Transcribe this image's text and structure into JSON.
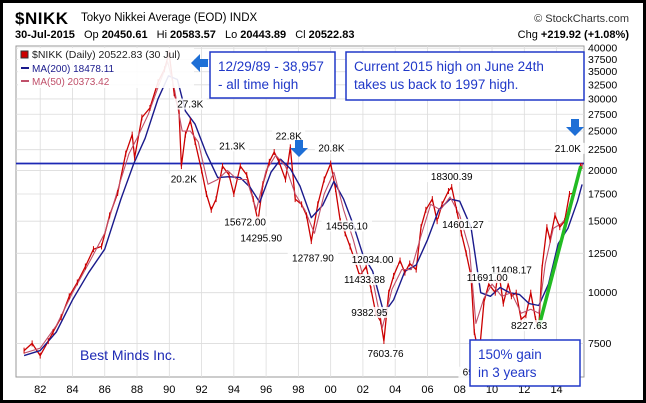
{
  "header": {
    "symbol": "$NIKK",
    "name": "Tokyo Nikkei Average (EOD)  INDX",
    "source": "© StockCharts.com",
    "date": "30-Jul-2015",
    "open_label": "Op",
    "open": "20450.61",
    "high_label": "Hi",
    "high": "20583.57",
    "low_label": "Lo",
    "low": "20443.89",
    "close_label": "Cl",
    "close": "20522.83",
    "change_label": "Chg",
    "change": "+219.92 (+1.08%)"
  },
  "legend": {
    "title": "$NIKK (Daily) 20522.83 (30 Jul)",
    "ma200": "MA(200) 18478.11",
    "ma50": "MA(50) 20373.42"
  },
  "colors": {
    "price": "#cc0000",
    "ma200": "#1a1a8c",
    "ma50": "#c0506a",
    "hline": "#1c28b4",
    "callout_border": "#2038c8",
    "callout_text": "#2038c8",
    "arrow": "#1e6fd6",
    "trend": "#22bb22",
    "watermark": "#1c28b4"
  },
  "chart_data": {
    "type": "line",
    "yscale": "log",
    "ylim": [
      6200,
      40500
    ],
    "xlim": [
      1980.5,
      2015.7
    ],
    "x_ticks": [
      1982,
      1984,
      1986,
      1988,
      1990,
      1992,
      1994,
      1996,
      1998,
      2000,
      2002,
      2004,
      2006,
      2008,
      2010,
      2012,
      2014
    ],
    "x_tick_labels": [
      "82",
      "84",
      "86",
      "88",
      "90",
      "92",
      "94",
      "96",
      "98",
      "00",
      "02",
      "04",
      "06",
      "08",
      "10",
      "12",
      "14"
    ],
    "y_ticks": [
      7500,
      10000,
      12500,
      15000,
      17500,
      20000,
      22500,
      25000,
      27500,
      30000,
      32500,
      35000,
      37500,
      40000
    ],
    "y_tick_labels": [
      "7500",
      "10000",
      "12500",
      "15000",
      "17500",
      "20000",
      "22500",
      "25000",
      "27500",
      "30000",
      "32500",
      "35000",
      "37500",
      "40000"
    ],
    "grid": true,
    "series": [
      {
        "key": "price",
        "x": [
          1981.0,
          1981.5,
          1982.0,
          1982.5,
          1982.8,
          1983.3,
          1983.8,
          1984.3,
          1984.8,
          1985.3,
          1985.8,
          1986.3,
          1986.8,
          1987.3,
          1987.7,
          1987.85,
          1988.3,
          1988.8,
          1989.3,
          1989.7,
          1989.99,
          1990.3,
          1990.6,
          1990.75,
          1991.0,
          1991.3,
          1991.6,
          1992.0,
          1992.3,
          1992.6,
          1992.9,
          1993.3,
          1993.7,
          1994.0,
          1994.4,
          1994.8,
          1995.2,
          1995.5,
          1995.8,
          1996.2,
          1996.5,
          1996.8,
          1997.2,
          1997.5,
          1997.8,
          1998.2,
          1998.5,
          1998.8,
          1999.2,
          1999.6,
          2000.0,
          2000.3,
          2000.6,
          2000.9,
          2001.2,
          2001.5,
          2001.8,
          2002.2,
          2002.5,
          2002.8,
          2003.1,
          2003.3,
          2003.6,
          2003.9,
          2004.3,
          2004.6,
          2004.9,
          2005.3,
          2005.6,
          2005.9,
          2006.3,
          2006.6,
          2006.9,
          2007.3,
          2007.5,
          2007.8,
          2008.1,
          2008.4,
          2008.7,
          2008.9,
          2009.2,
          2009.5,
          2009.8,
          2010.2,
          2010.4,
          2010.7,
          2011.0,
          2011.2,
          2011.5,
          2011.8,
          2012.1,
          2012.4,
          2012.7,
          2012.9,
          2013.1,
          2013.4,
          2013.6,
          2013.9,
          2014.2,
          2014.5,
          2014.8,
          2015.1,
          2015.3,
          2015.48,
          2015.58
        ],
        "values": [
          7200,
          7500,
          7000,
          7600,
          8000,
          8700,
          9800,
          10600,
          11600,
          12800,
          13000,
          15500,
          17600,
          22000,
          24500,
          21500,
          27000,
          28500,
          33000,
          35500,
          38957,
          31000,
          28000,
          20500,
          24500,
          26500,
          23500,
          20000,
          17500,
          16000,
          17000,
          20500,
          19500,
          17500,
          20500,
          19500,
          17000,
          15000,
          18500,
          21000,
          22200,
          21000,
          19000,
          22800,
          17000,
          16500,
          15500,
          13400,
          16500,
          19000,
          20800,
          18000,
          15000,
          14000,
          13000,
          12000,
          11000,
          11600,
          10200,
          8900,
          8500,
          7604,
          10000,
          11000,
          12000,
          11200,
          11800,
          11400,
          14500,
          16000,
          17000,
          15000,
          16500,
          17800,
          18200,
          16000,
          14000,
          12500,
          11000,
          8000,
          6995,
          9500,
          10500,
          10000,
          11400,
          9400,
          10500,
          9800,
          10000,
          8600,
          8800,
          10000,
          8600,
          8228,
          11500,
          14500,
          13500,
          15500,
          14500,
          15000,
          17500,
          17600,
          19000,
          20500,
          20522.83
        ]
      },
      {
        "key": "ma200",
        "x": [
          1981.0,
          1982.0,
          1983.0,
          1984.0,
          1985.0,
          1986.0,
          1987.0,
          1987.8,
          1988.5,
          1989.3,
          1989.95,
          1990.5,
          1991.0,
          1991.6,
          1992.3,
          1993.0,
          1993.7,
          1994.4,
          1995.0,
          1995.6,
          1996.3,
          1996.9,
          1997.5,
          1998.1,
          1998.8,
          1999.5,
          2000.2,
          2000.8,
          2001.4,
          2002.0,
          2002.6,
          2003.3,
          2003.9,
          2004.6,
          2005.3,
          2006.0,
          2006.7,
          2007.4,
          2008.0,
          2008.7,
          2009.3,
          2009.9,
          2010.5,
          2011.1,
          2011.7,
          2012.3,
          2012.9,
          2013.5,
          2014.1,
          2014.7,
          2015.3,
          2015.58
        ],
        "values": [
          7000,
          7200,
          8000,
          9600,
          11200,
          12800,
          17000,
          20800,
          24000,
          30000,
          34200,
          33500,
          28000,
          26000,
          22000,
          19200,
          19300,
          19200,
          18200,
          16700,
          19800,
          21300,
          20200,
          18300,
          15300,
          16400,
          18800,
          17000,
          14700,
          12400,
          11300,
          8900,
          9600,
          11300,
          11700,
          13500,
          16000,
          17000,
          16800,
          14500,
          10000,
          9800,
          10300,
          10000,
          9900,
          9400,
          9300,
          10500,
          13200,
          14400,
          16800,
          18478
        ]
      },
      {
        "key": "ma50",
        "x": [
          1981.0,
          1982.0,
          1983.0,
          1984.0,
          1985.0,
          1986.0,
          1987.0,
          1987.5,
          1988.0,
          1988.7,
          1989.3,
          1989.9,
          1990.3,
          1990.8,
          1991.3,
          1991.8,
          1992.4,
          1993.0,
          1993.6,
          1994.2,
          1994.8,
          1995.4,
          1996.0,
          1996.6,
          1997.2,
          1997.8,
          1998.4,
          1999.0,
          1999.6,
          2000.2,
          2000.8,
          2001.4,
          2002.0,
          2002.6,
          2003.2,
          2003.8,
          2004.4,
          2005.0,
          2005.6,
          2006.2,
          2006.8,
          2007.4,
          2008.0,
          2008.6,
          2009.0,
          2009.5,
          2010.0,
          2010.6,
          2011.2,
          2011.8,
          2012.4,
          2012.9,
          2013.3,
          2013.8,
          2014.3,
          2014.8,
          2015.2,
          2015.58
        ],
        "values": [
          7100,
          7300,
          8300,
          10000,
          11800,
          14000,
          19000,
          22000,
          24000,
          27500,
          32000,
          37000,
          32000,
          25000,
          25000,
          23500,
          18500,
          19000,
          20000,
          19000,
          19000,
          16000,
          20000,
          21800,
          20500,
          17500,
          16000,
          14000,
          17500,
          19800,
          16000,
          13500,
          11000,
          10800,
          8200,
          10200,
          11400,
          11400,
          13800,
          16500,
          16000,
          17200,
          15500,
          12800,
          8400,
          9700,
          10500,
          9800,
          10000,
          8900,
          9100,
          8900,
          11800,
          14400,
          14800,
          15600,
          18800,
          20373
        ]
      }
    ],
    "horizontal_line": 20800,
    "trendline": {
      "x": [
        2012.9,
        2015.5
      ],
      "values": [
        8228,
        20500
      ]
    },
    "annotations": [
      {
        "text": "27.3K",
        "x": 1991.3,
        "y": 27300,
        "anchor": "middle",
        "dy": -8
      },
      {
        "text": "20.2K",
        "x": 1990.9,
        "y": 20200,
        "anchor": "middle",
        "dy": 14
      },
      {
        "text": "21.3K",
        "x": 1993.9,
        "y": 21300,
        "anchor": "middle",
        "dy": -10
      },
      {
        "text": "22.8K",
        "x": 1997.4,
        "y": 22800,
        "anchor": "middle",
        "dy": -8
      },
      {
        "text": "20.8K",
        "x": 2000.05,
        "y": 20800,
        "anchor": "middle",
        "dy": -12
      },
      {
        "text": "15672.00",
        "x": 1994.7,
        "y": 15672,
        "anchor": "middle",
        "dy": 12
      },
      {
        "text": "14295.90",
        "x": 1995.7,
        "y": 14295.9,
        "anchor": "middle",
        "dy": 12
      },
      {
        "text": "12787.90",
        "x": 1998.9,
        "y": 12787.9,
        "anchor": "middle",
        "dy": 12
      },
      {
        "text": "14556.10",
        "x": 2001.0,
        "y": 14556.1,
        "anchor": "middle",
        "dy": 3
      },
      {
        "text": "12034.00",
        "x": 2002.6,
        "y": 12034,
        "anchor": "middle",
        "dy": 3
      },
      {
        "text": "11433.88",
        "x": 2002.1,
        "y": 11433.88,
        "anchor": "middle",
        "dy": 14
      },
      {
        "text": "9382.95",
        "x": 2002.4,
        "y": 9382.95,
        "anchor": "middle",
        "dy": 12
      },
      {
        "text": "7603.76",
        "x": 2003.4,
        "y": 7603.76,
        "anchor": "middle",
        "dy": 16
      },
      {
        "text": "18300.39",
        "x": 2007.5,
        "y": 18300.39,
        "anchor": "middle",
        "dy": -6
      },
      {
        "text": "14601.27",
        "x": 2008.2,
        "y": 14601.27,
        "anchor": "middle",
        "dy": 2
      },
      {
        "text": "11408.17",
        "x": 2011.2,
        "y": 11408.17,
        "anchor": "middle",
        "dy": 4
      },
      {
        "text": "11691.00",
        "x": 2009.7,
        "y": 11691,
        "anchor": "middle",
        "dy": 16
      },
      {
        "text": "8227.63",
        "x": 2012.3,
        "y": 8227.63,
        "anchor": "middle",
        "dy": 2
      },
      {
        "text": "6994.90",
        "x": 2009.3,
        "y": 6994.9,
        "anchor": "middle",
        "dy": 20
      },
      {
        "text": "21.0K",
        "x": 2014.7,
        "y": 21000,
        "anchor": "middle",
        "dy": -10
      }
    ],
    "callouts": [
      {
        "lines": [
          "12/29/89 - 38,957",
          "- all time high"
        ]
      },
      {
        "lines": [
          "Current 2015 high on June 24th",
          "takes us back to 1997 high."
        ]
      },
      {
        "lines": [
          "150% gain",
          "in 3 years"
        ]
      }
    ],
    "watermark": "Best Minds Inc."
  }
}
